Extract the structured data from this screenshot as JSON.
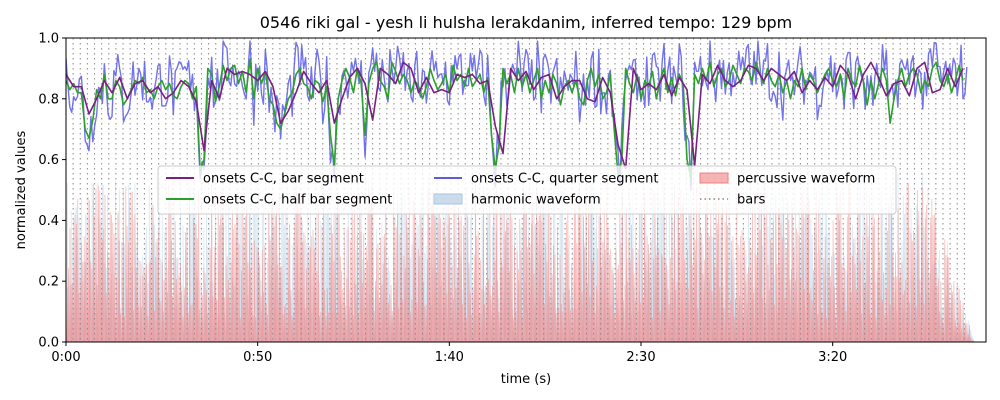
{
  "chart_data": {
    "type": "line",
    "title": "0546 riki gal - yesh li hulsha lerakdanim, inferred tempo: 129 bpm",
    "xlabel": "time (s)",
    "ylabel": "normalized values",
    "xlim": [
      0,
      240
    ],
    "ylim": [
      0,
      1.0
    ],
    "x_ticks": [
      {
        "value": 0,
        "label": "0:00"
      },
      {
        "value": 50,
        "label": "0:50"
      },
      {
        "value": 100,
        "label": "1:40"
      },
      {
        "value": 150,
        "label": "2:30"
      },
      {
        "value": 200,
        "label": "3:20"
      }
    ],
    "y_ticks": [
      {
        "value": 0.0,
        "label": "0.0"
      },
      {
        "value": 0.2,
        "label": "0.2"
      },
      {
        "value": 0.4,
        "label": "0.4"
      },
      {
        "value": 0.6,
        "label": "0.6"
      },
      {
        "value": 0.8,
        "label": "0.8"
      },
      {
        "value": 1.0,
        "label": "1.0"
      }
    ],
    "tempo_bpm": 129,
    "bar_interval_s": 1.86,
    "bars_end_s": 235,
    "grid": false,
    "legend_placement": "center",
    "series": [
      {
        "name": "onsets C-C, bar segment",
        "kind": "line",
        "color": "#7b1f82",
        "x": [
          0,
          2,
          4,
          6,
          8,
          10,
          12,
          14,
          16,
          18,
          20,
          22,
          24,
          26,
          28,
          30,
          32,
          34,
          36,
          38,
          40,
          42,
          44,
          46,
          48,
          50,
          52,
          54,
          56,
          58,
          60,
          62,
          64,
          66,
          68,
          70,
          72,
          74,
          76,
          78,
          80,
          82,
          84,
          86,
          88,
          90,
          92,
          94,
          96,
          98,
          100,
          102,
          104,
          106,
          108,
          110,
          112,
          114,
          116,
          118,
          120,
          122,
          124,
          126,
          128,
          130,
          132,
          134,
          136,
          138,
          140,
          142,
          144,
          146,
          148,
          150,
          152,
          154,
          156,
          158,
          160,
          162,
          164,
          166,
          168,
          170,
          172,
          174,
          176,
          178,
          180,
          182,
          184,
          186,
          188,
          190,
          192,
          194,
          196,
          198,
          200,
          202,
          204,
          206,
          208,
          210,
          212,
          214,
          216,
          218,
          220,
          222,
          224,
          226,
          228,
          230,
          232,
          234
        ],
        "values": [
          0.88,
          0.84,
          0.84,
          0.75,
          0.8,
          0.86,
          0.82,
          0.87,
          0.8,
          0.85,
          0.86,
          0.82,
          0.84,
          0.8,
          0.82,
          0.86,
          0.84,
          0.79,
          0.63,
          0.86,
          0.8,
          0.9,
          0.88,
          0.89,
          0.88,
          0.86,
          0.89,
          0.84,
          0.72,
          0.76,
          0.82,
          0.89,
          0.85,
          0.82,
          0.86,
          0.72,
          0.8,
          0.87,
          0.9,
          0.85,
          0.73,
          0.9,
          0.88,
          0.85,
          0.92,
          0.9,
          0.82,
          0.87,
          0.82,
          0.83,
          0.82,
          0.88,
          0.87,
          0.88,
          0.85,
          0.86,
          0.71,
          0.62,
          0.9,
          0.86,
          0.89,
          0.83,
          0.87,
          0.88,
          0.8,
          0.84,
          0.86,
          0.86,
          0.8,
          0.79,
          0.87,
          0.82,
          0.65,
          0.57,
          0.9,
          0.83,
          0.85,
          0.83,
          0.88,
          0.81,
          0.87,
          0.83,
          0.58,
          0.88,
          0.85,
          0.91,
          0.86,
          0.84,
          0.86,
          0.91,
          0.9,
          0.86,
          0.9,
          0.88,
          0.86,
          0.89,
          0.82,
          0.86,
          0.83,
          0.87,
          0.84,
          0.91,
          0.88,
          0.8,
          0.88,
          0.92,
          0.87,
          0.81,
          0.85,
          0.86,
          0.81,
          0.9,
          0.92,
          0.82,
          0.83,
          0.9,
          0.84,
          0.9
        ]
      },
      {
        "name": "onsets C-C, half bar segment",
        "kind": "line",
        "color": "#2ca02c",
        "x": [
          0,
          1,
          2,
          3,
          4,
          5,
          6,
          7,
          8,
          9,
          10,
          11,
          12,
          13,
          14,
          15,
          16,
          17,
          18,
          19,
          20,
          21,
          22,
          23,
          24,
          25,
          26,
          27,
          28,
          29,
          30,
          31,
          32,
          33,
          34,
          35,
          36,
          37,
          38,
          39,
          40,
          41,
          42,
          43,
          44,
          45,
          46,
          47,
          48,
          49,
          50,
          51,
          52,
          53,
          54,
          55,
          56,
          57,
          58,
          59,
          60,
          61,
          62,
          63,
          64,
          65,
          66,
          67,
          68,
          69,
          70,
          71,
          72,
          73,
          74,
          75,
          76,
          77,
          78,
          79,
          80,
          81,
          82,
          83,
          84,
          85,
          86,
          87,
          88,
          89,
          90,
          91,
          92,
          93,
          94,
          95,
          96,
          97,
          98,
          99,
          100,
          101,
          102,
          103,
          104,
          105,
          106,
          107,
          108,
          109,
          110,
          111,
          112,
          113,
          114,
          115,
          116,
          117,
          118,
          119,
          120,
          121,
          122,
          123,
          124,
          125,
          126,
          127,
          128,
          129,
          130,
          131,
          132,
          133,
          134,
          135,
          136,
          137,
          138,
          139,
          140,
          141,
          142,
          143,
          144,
          145,
          146,
          147,
          148,
          149,
          150,
          151,
          152,
          153,
          154,
          155,
          156,
          157,
          158,
          159,
          160,
          161,
          162,
          163,
          164,
          165,
          166,
          167,
          168,
          169,
          170,
          171,
          172,
          173,
          174,
          175,
          176,
          177,
          178,
          179,
          180,
          181,
          182,
          183,
          184,
          185,
          186,
          187,
          188,
          189,
          190,
          191,
          192,
          193,
          194,
          195,
          196,
          197,
          198,
          199,
          200,
          201,
          202,
          203,
          204,
          205,
          206,
          207,
          208,
          209,
          210,
          211,
          212,
          213,
          214,
          215,
          216,
          217,
          218,
          219,
          220,
          221,
          222,
          223,
          224,
          225,
          226,
          227,
          228,
          229,
          230,
          231,
          232,
          233,
          234
        ],
        "values": [
          0.86,
          0.83,
          0.85,
          0.82,
          0.82,
          0.7,
          0.67,
          0.73,
          0.83,
          0.8,
          0.88,
          0.8,
          0.8,
          0.86,
          0.84,
          0.78,
          0.8,
          0.83,
          0.86,
          0.85,
          0.87,
          0.82,
          0.83,
          0.8,
          0.84,
          0.86,
          0.83,
          0.85,
          0.81,
          0.8,
          0.84,
          0.86,
          0.85,
          0.8,
          0.84,
          0.56,
          0.6,
          0.9,
          0.88,
          0.79,
          0.84,
          0.91,
          0.86,
          0.9,
          0.91,
          0.85,
          0.89,
          0.82,
          0.93,
          0.8,
          0.9,
          0.85,
          0.89,
          0.8,
          0.78,
          0.72,
          0.7,
          0.75,
          0.8,
          0.82,
          0.88,
          0.9,
          0.85,
          0.84,
          0.8,
          0.86,
          0.85,
          0.79,
          0.84,
          0.68,
          0.58,
          0.8,
          0.86,
          0.9,
          0.87,
          0.82,
          0.9,
          0.85,
          0.68,
          0.85,
          0.9,
          0.92,
          0.86,
          0.84,
          0.8,
          0.92,
          0.89,
          0.85,
          0.88,
          0.86,
          0.82,
          0.86,
          0.84,
          0.8,
          0.84,
          0.9,
          0.86,
          0.83,
          0.85,
          0.88,
          0.82,
          0.91,
          0.86,
          0.88,
          0.84,
          0.9,
          0.84,
          0.86,
          0.88,
          0.82,
          0.87,
          0.68,
          0.57,
          0.65,
          0.9,
          0.85,
          0.88,
          0.82,
          0.9,
          0.84,
          0.88,
          0.82,
          0.86,
          0.9,
          0.8,
          0.86,
          0.82,
          0.88,
          0.85,
          0.78,
          0.84,
          0.86,
          0.82,
          0.86,
          0.8,
          0.78,
          0.86,
          0.9,
          0.84,
          0.88,
          0.8,
          0.82,
          0.88,
          0.7,
          0.55,
          0.6,
          0.9,
          0.85,
          0.82,
          0.88,
          0.8,
          0.86,
          0.84,
          0.89,
          0.8,
          0.86,
          0.9,
          0.82,
          0.87,
          0.81,
          0.88,
          0.85,
          0.6,
          0.54,
          0.88,
          0.85,
          0.9,
          0.86,
          0.92,
          0.84,
          0.88,
          0.9,
          0.84,
          0.86,
          0.91,
          0.88,
          0.85,
          0.9,
          0.89,
          0.86,
          0.92,
          0.88,
          0.85,
          0.9,
          0.86,
          0.84,
          0.88,
          0.82,
          0.86,
          0.8,
          0.86,
          0.84,
          0.9,
          0.83,
          0.88,
          0.86,
          0.82,
          0.85,
          0.88,
          0.9,
          0.86,
          0.84,
          0.88,
          0.8,
          0.9,
          0.86,
          0.84,
          0.91,
          0.86,
          0.78,
          0.86,
          0.8,
          0.85,
          0.9,
          0.86,
          0.72,
          0.8,
          0.86,
          0.9,
          0.84,
          0.88,
          0.9,
          0.88,
          0.82,
          0.86,
          0.84,
          0.9,
          0.92,
          0.86,
          0.84,
          0.88,
          0.82,
          0.86,
          0.91,
          0.86
        ]
      },
      {
        "name": "onsets C-C, quarter segment",
        "kind": "line",
        "color": "#5b5be8",
        "step": 0.5,
        "base_series": "onsets C-C, half bar segment",
        "jitter_amplitude": 0.1
      },
      {
        "name": "harmonic waveform",
        "kind": "area",
        "color": "#a9c6e0",
        "peak": 0.56,
        "end_s": 237
      },
      {
        "name": "percussive waveform",
        "kind": "area",
        "color": "#f08080",
        "peak": 0.56,
        "end_s": 237
      },
      {
        "name": "bars",
        "kind": "vlines",
        "color": "#888888"
      }
    ],
    "legend": [
      {
        "label": "onsets C-C, bar segment",
        "style": "line",
        "color": "#7b1f82"
      },
      {
        "label": "onsets C-C, half bar segment",
        "style": "line",
        "color": "#2ca02c"
      },
      {
        "label": "onsets C-C, quarter segment",
        "style": "line",
        "color": "#5b5be8"
      },
      {
        "label": "harmonic waveform",
        "style": "patch",
        "color": "#a9c6e0"
      },
      {
        "label": "percussive waveform",
        "style": "patch",
        "color": "#f08080"
      },
      {
        "label": "bars",
        "style": "dotted",
        "color": "#888888"
      }
    ]
  }
}
